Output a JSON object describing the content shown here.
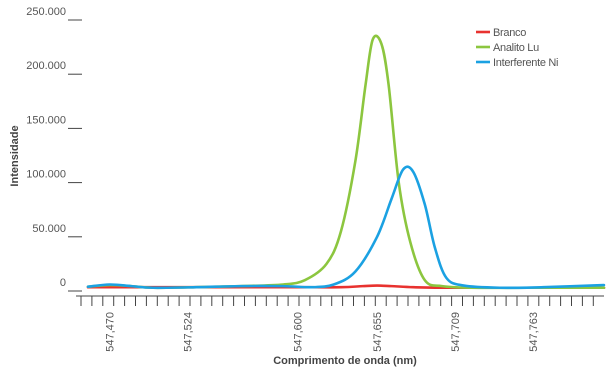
{
  "chart_data": {
    "type": "line",
    "xlabel": "Comprimento de onda (nm)",
    "ylabel": "Intensidade",
    "ylim": [
      0,
      250000
    ],
    "xlim": [
      547.455,
      547.812
    ],
    "y_ticks": [
      0,
      50000,
      100000,
      150000,
      200000,
      250000
    ],
    "y_tick_labels": [
      "0",
      "50.000",
      "100.000",
      "150.000",
      "200.000",
      "250.000"
    ],
    "x_tick_labels": [
      {
        "value": 547.47,
        "label": "547,470"
      },
      {
        "value": 547.524,
        "label": "547,524"
      },
      {
        "value": 547.6,
        "label": "547,600"
      },
      {
        "value": 547.655,
        "label": "547,655"
      },
      {
        "value": 547.709,
        "label": "547,709"
      },
      {
        "value": 547.763,
        "label": "547,763"
      }
    ],
    "legend_position": "top-right",
    "grid": false,
    "series": [
      {
        "name": "Branco",
        "color": "#e8322f",
        "x": [
          547.455,
          547.5,
          547.55,
          547.6,
          547.63,
          547.645,
          547.655,
          547.665,
          547.68,
          547.7,
          547.75,
          547.812
        ],
        "y": [
          3500,
          3500,
          3500,
          3500,
          3500,
          4500,
          5000,
          4500,
          3500,
          3000,
          3000,
          3000
        ]
      },
      {
        "name": "Analito Lu",
        "color": "#8cc63f",
        "x": [
          547.455,
          547.47,
          547.485,
          547.5,
          547.53,
          547.56,
          547.59,
          547.605,
          547.62,
          547.63,
          547.64,
          547.647,
          547.652,
          547.658,
          547.663,
          547.67,
          547.678,
          547.688,
          547.7,
          547.72,
          547.76,
          547.812
        ],
        "y": [
          4000,
          5500,
          4500,
          3000,
          3500,
          4500,
          6000,
          10000,
          25000,
          55000,
          120000,
          190000,
          232000,
          228000,
          190000,
          100000,
          45000,
          10000,
          4500,
          3000,
          3000,
          3000
        ]
      },
      {
        "name": "Interferente Ni",
        "color": "#1ba1e2",
        "x": [
          547.455,
          547.47,
          547.485,
          547.5,
          547.53,
          547.56,
          547.59,
          547.61,
          547.625,
          547.64,
          547.655,
          547.665,
          547.673,
          547.68,
          547.688,
          547.695,
          547.703,
          547.715,
          547.74,
          547.77,
          547.812
        ],
        "y": [
          4000,
          6000,
          4500,
          3000,
          3500,
          4500,
          4500,
          3500,
          6000,
          18000,
          50000,
          85000,
          112000,
          110000,
          80000,
          40000,
          12000,
          5000,
          3000,
          3500,
          5500
        ]
      }
    ]
  }
}
